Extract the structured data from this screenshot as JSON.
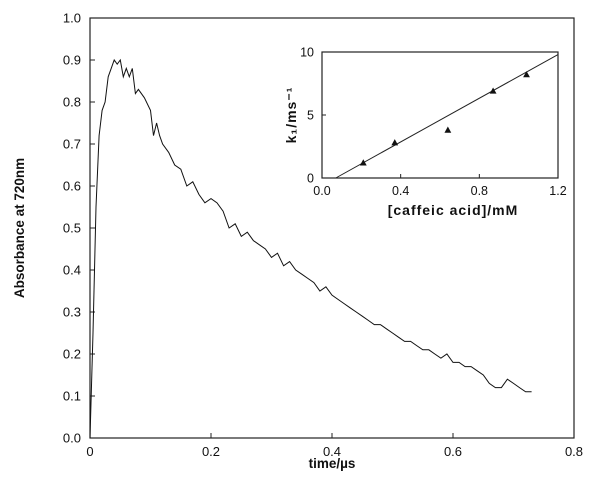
{
  "chart_data": [
    {
      "type": "line",
      "xlabel": "time/µs",
      "ylabel": "Absorbance at 720nm",
      "xlim": [
        0,
        0.8
      ],
      "ylim": [
        0,
        1.0
      ],
      "xticks": [
        "0",
        "0.2",
        "0.4",
        "0.6",
        "0.8"
      ],
      "yticks": [
        "0.0",
        "0.1",
        "0.2",
        "0.3",
        "0.4",
        "0.5",
        "0.6",
        "0.7",
        "0.8",
        "0.9",
        "1.0"
      ],
      "grid": false,
      "series": [
        {
          "x": [
            0.0,
            0.005,
            0.01,
            0.015,
            0.02,
            0.025,
            0.03,
            0.035,
            0.04,
            0.045,
            0.05,
            0.055,
            0.06,
            0.065,
            0.07,
            0.075,
            0.08,
            0.09,
            0.1,
            0.105,
            0.11,
            0.115,
            0.12,
            0.13,
            0.14,
            0.15,
            0.16,
            0.17,
            0.18,
            0.19,
            0.2,
            0.21,
            0.22,
            0.23,
            0.24,
            0.25,
            0.26,
            0.27,
            0.28,
            0.29,
            0.3,
            0.31,
            0.32,
            0.33,
            0.34,
            0.35,
            0.36,
            0.37,
            0.38,
            0.39,
            0.4,
            0.41,
            0.42,
            0.43,
            0.44,
            0.45,
            0.46,
            0.47,
            0.48,
            0.49,
            0.5,
            0.51,
            0.52,
            0.53,
            0.54,
            0.55,
            0.56,
            0.57,
            0.58,
            0.59,
            0.6,
            0.61,
            0.62,
            0.63,
            0.64,
            0.65,
            0.66,
            0.67,
            0.68,
            0.69,
            0.7,
            0.71,
            0.72,
            0.73
          ],
          "values": [
            0.0,
            0.25,
            0.55,
            0.72,
            0.78,
            0.8,
            0.86,
            0.88,
            0.9,
            0.89,
            0.9,
            0.86,
            0.88,
            0.86,
            0.88,
            0.82,
            0.83,
            0.81,
            0.78,
            0.72,
            0.75,
            0.72,
            0.7,
            0.68,
            0.65,
            0.64,
            0.6,
            0.61,
            0.58,
            0.56,
            0.57,
            0.56,
            0.54,
            0.5,
            0.51,
            0.48,
            0.49,
            0.47,
            0.46,
            0.45,
            0.43,
            0.44,
            0.41,
            0.42,
            0.4,
            0.39,
            0.38,
            0.37,
            0.35,
            0.36,
            0.34,
            0.33,
            0.32,
            0.31,
            0.3,
            0.29,
            0.28,
            0.27,
            0.27,
            0.26,
            0.25,
            0.24,
            0.23,
            0.23,
            0.22,
            0.21,
            0.21,
            0.2,
            0.19,
            0.2,
            0.18,
            0.18,
            0.17,
            0.17,
            0.16,
            0.15,
            0.13,
            0.12,
            0.12,
            0.14,
            0.13,
            0.12,
            0.11,
            0.11
          ]
        }
      ]
    },
    {
      "type": "scatter",
      "xlabel": "[caffeic acid]/mM",
      "ylabel": "k₁/ms⁻¹",
      "xlim": [
        0,
        1.2
      ],
      "ylim": [
        0,
        10
      ],
      "xticks": [
        "0.0",
        "0.4",
        "0.8",
        "1.2"
      ],
      "yticks": [
        "0",
        "5",
        "10"
      ],
      "grid": false,
      "series": [
        {
          "x": [
            0.21,
            0.37,
            0.64,
            0.87,
            1.04
          ],
          "values": [
            1.2,
            2.8,
            3.8,
            6.9,
            8.2
          ]
        }
      ],
      "fit_line": {
        "x": [
          0.07,
          1.2
        ],
        "y": [
          0.0,
          9.8
        ]
      }
    }
  ]
}
